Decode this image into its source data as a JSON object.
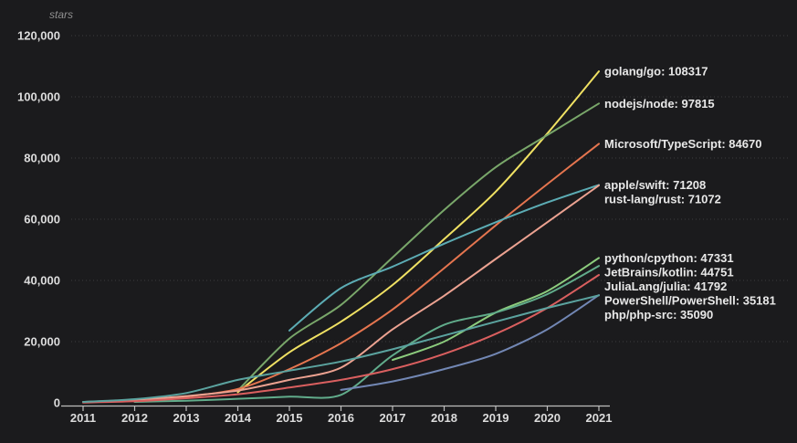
{
  "page": {
    "background": "#1b1b1d",
    "tick_text_color": "#dcdcdc",
    "label_text_color": "#e8e8e8",
    "muted_text_color": "#8f8f8f",
    "grid_color": "#3c3c3e",
    "axis_color": "#bdbdbd"
  },
  "chart_data": {
    "type": "line",
    "title": "",
    "xlabel": "",
    "ylabel": "stars",
    "grid": "horizontal-dashed",
    "legend_position": "right-end-labels",
    "xlim": [
      2011,
      2021
    ],
    "ylim": [
      0,
      120000
    ],
    "x_ticks": [
      "2011",
      "2012",
      "2013",
      "2014",
      "2015",
      "2016",
      "2017",
      "2018",
      "2019",
      "2020",
      "2021"
    ],
    "y_ticks": [
      {
        "value": 0,
        "label": "0"
      },
      {
        "value": 20000,
        "label": "20,000"
      },
      {
        "value": 40000,
        "label": "40,000"
      },
      {
        "value": 60000,
        "label": "60,000"
      },
      {
        "value": 80000,
        "label": "80,000"
      },
      {
        "value": 100000,
        "label": "100,000"
      },
      {
        "value": 120000,
        "label": "120,000"
      }
    ],
    "series": [
      {
        "name": "golang/go",
        "final": 108317,
        "color": "#f0e163",
        "x": [
          2014,
          2015,
          2016,
          2017,
          2018,
          2019,
          2020,
          2021
        ],
        "values": [
          3500,
          16500,
          26500,
          38500,
          53500,
          69000,
          88000,
          108317
        ]
      },
      {
        "name": "nodejs/node",
        "final": 97815,
        "color": "#79a76a",
        "x": [
          2014,
          2015,
          2016,
          2017,
          2018,
          2019,
          2020,
          2021
        ],
        "values": [
          4000,
          21000,
          32000,
          47500,
          63000,
          77000,
          87500,
          97815
        ]
      },
      {
        "name": "Microsoft/TypeScript",
        "final": 84670,
        "color": "#e5754f",
        "x": [
          2012,
          2013,
          2014,
          2015,
          2016,
          2017,
          2018,
          2019,
          2020,
          2021
        ],
        "values": [
          300,
          2000,
          4500,
          11000,
          19500,
          30500,
          44000,
          58000,
          71500,
          84670
        ]
      },
      {
        "name": "apple/swift",
        "final": 71208,
        "color": "#5cacb4",
        "x": [
          2015,
          2016,
          2017,
          2018,
          2019,
          2020,
          2021
        ],
        "values": [
          23600,
          37500,
          44500,
          52000,
          59000,
          65500,
          71208
        ]
      },
      {
        "name": "rust-lang/rust",
        "final": 71072,
        "color": "#eca291",
        "x": [
          2011,
          2012,
          2013,
          2014,
          2015,
          2016,
          2017,
          2018,
          2019,
          2020,
          2021
        ],
        "values": [
          300,
          1000,
          2200,
          4000,
          7500,
          11500,
          24000,
          35000,
          47000,
          59000,
          71072
        ]
      },
      {
        "name": "python/cpython",
        "final": 47331,
        "color": "#8ccc7d",
        "x": [
          2017,
          2018,
          2019,
          2020,
          2021
        ],
        "values": [
          14000,
          20000,
          29500,
          36500,
          47331
        ]
      },
      {
        "name": "JetBrains/kotlin",
        "final": 44751,
        "color": "#61ac8b",
        "x": [
          2012,
          2013,
          2014,
          2015,
          2016,
          2017,
          2018,
          2019,
          2020,
          2021
        ],
        "values": [
          300,
          700,
          1300,
          2000,
          2600,
          15500,
          25500,
          29500,
          35500,
          44751
        ]
      },
      {
        "name": "JuliaLang/julia",
        "final": 41792,
        "color": "#da5f5f",
        "x": [
          2011,
          2012,
          2013,
          2014,
          2015,
          2016,
          2017,
          2018,
          2019,
          2020,
          2021
        ],
        "values": [
          100,
          500,
          1500,
          2800,
          5000,
          7500,
          11000,
          16000,
          22500,
          31000,
          41792
        ]
      },
      {
        "name": "PowerShell/PowerShell",
        "final": 35181,
        "color": "#7287b4",
        "x": [
          2016,
          2017,
          2018,
          2019,
          2020,
          2021
        ],
        "values": [
          4200,
          7000,
          11000,
          16000,
          24000,
          35181
        ]
      },
      {
        "name": "php/php-src",
        "final": 35090,
        "color": "#5ba39f",
        "x": [
          2011,
          2012,
          2013,
          2014,
          2015,
          2016,
          2017,
          2018,
          2019,
          2020,
          2021
        ],
        "values": [
          300,
          1200,
          3200,
          7500,
          10500,
          13500,
          17500,
          22000,
          26500,
          31000,
          35090
        ]
      }
    ]
  }
}
